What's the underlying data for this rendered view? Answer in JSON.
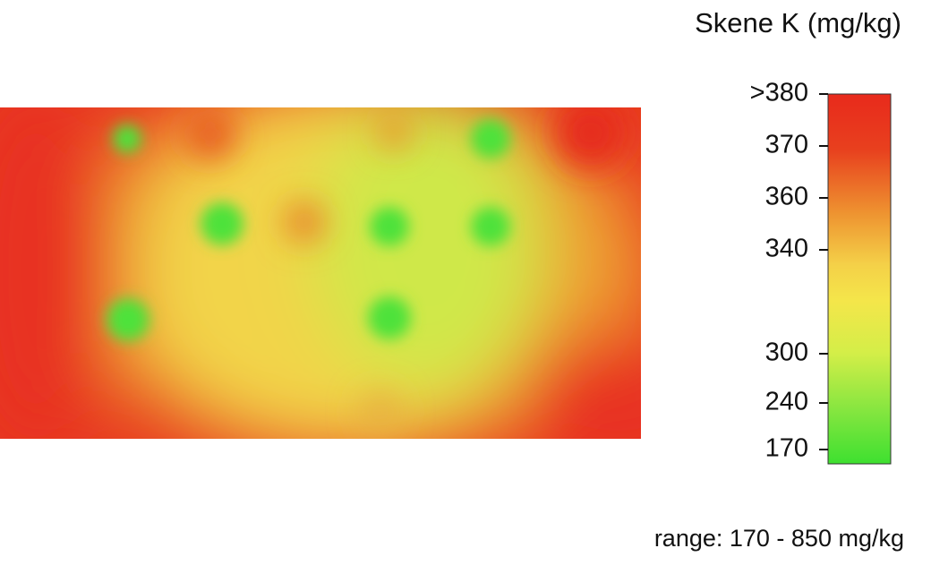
{
  "title": "Skene K (mg/kg)",
  "legend": {
    "labels": [
      ">380",
      "370",
      "360",
      "340",
      "300",
      "240",
      "170"
    ]
  },
  "note": "range: 170 - 850 mg/kg"
}
